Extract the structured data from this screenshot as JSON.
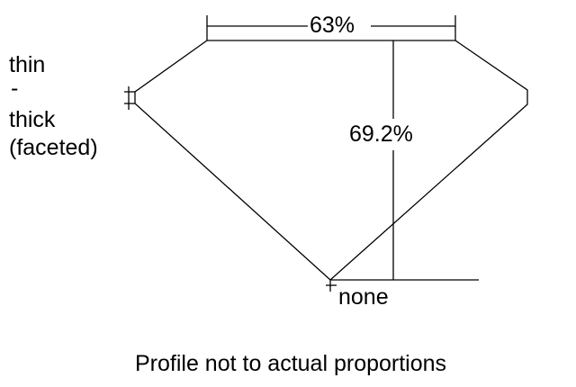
{
  "labels": {
    "table_percent": "63%",
    "depth_percent": "69.2%",
    "girdle": [
      "thin",
      "-",
      "thick",
      "(faceted)"
    ],
    "culet": "none",
    "caption": "Profile not to actual proportions"
  },
  "colors": {
    "line": "#000000",
    "background": "#ffffff"
  }
}
